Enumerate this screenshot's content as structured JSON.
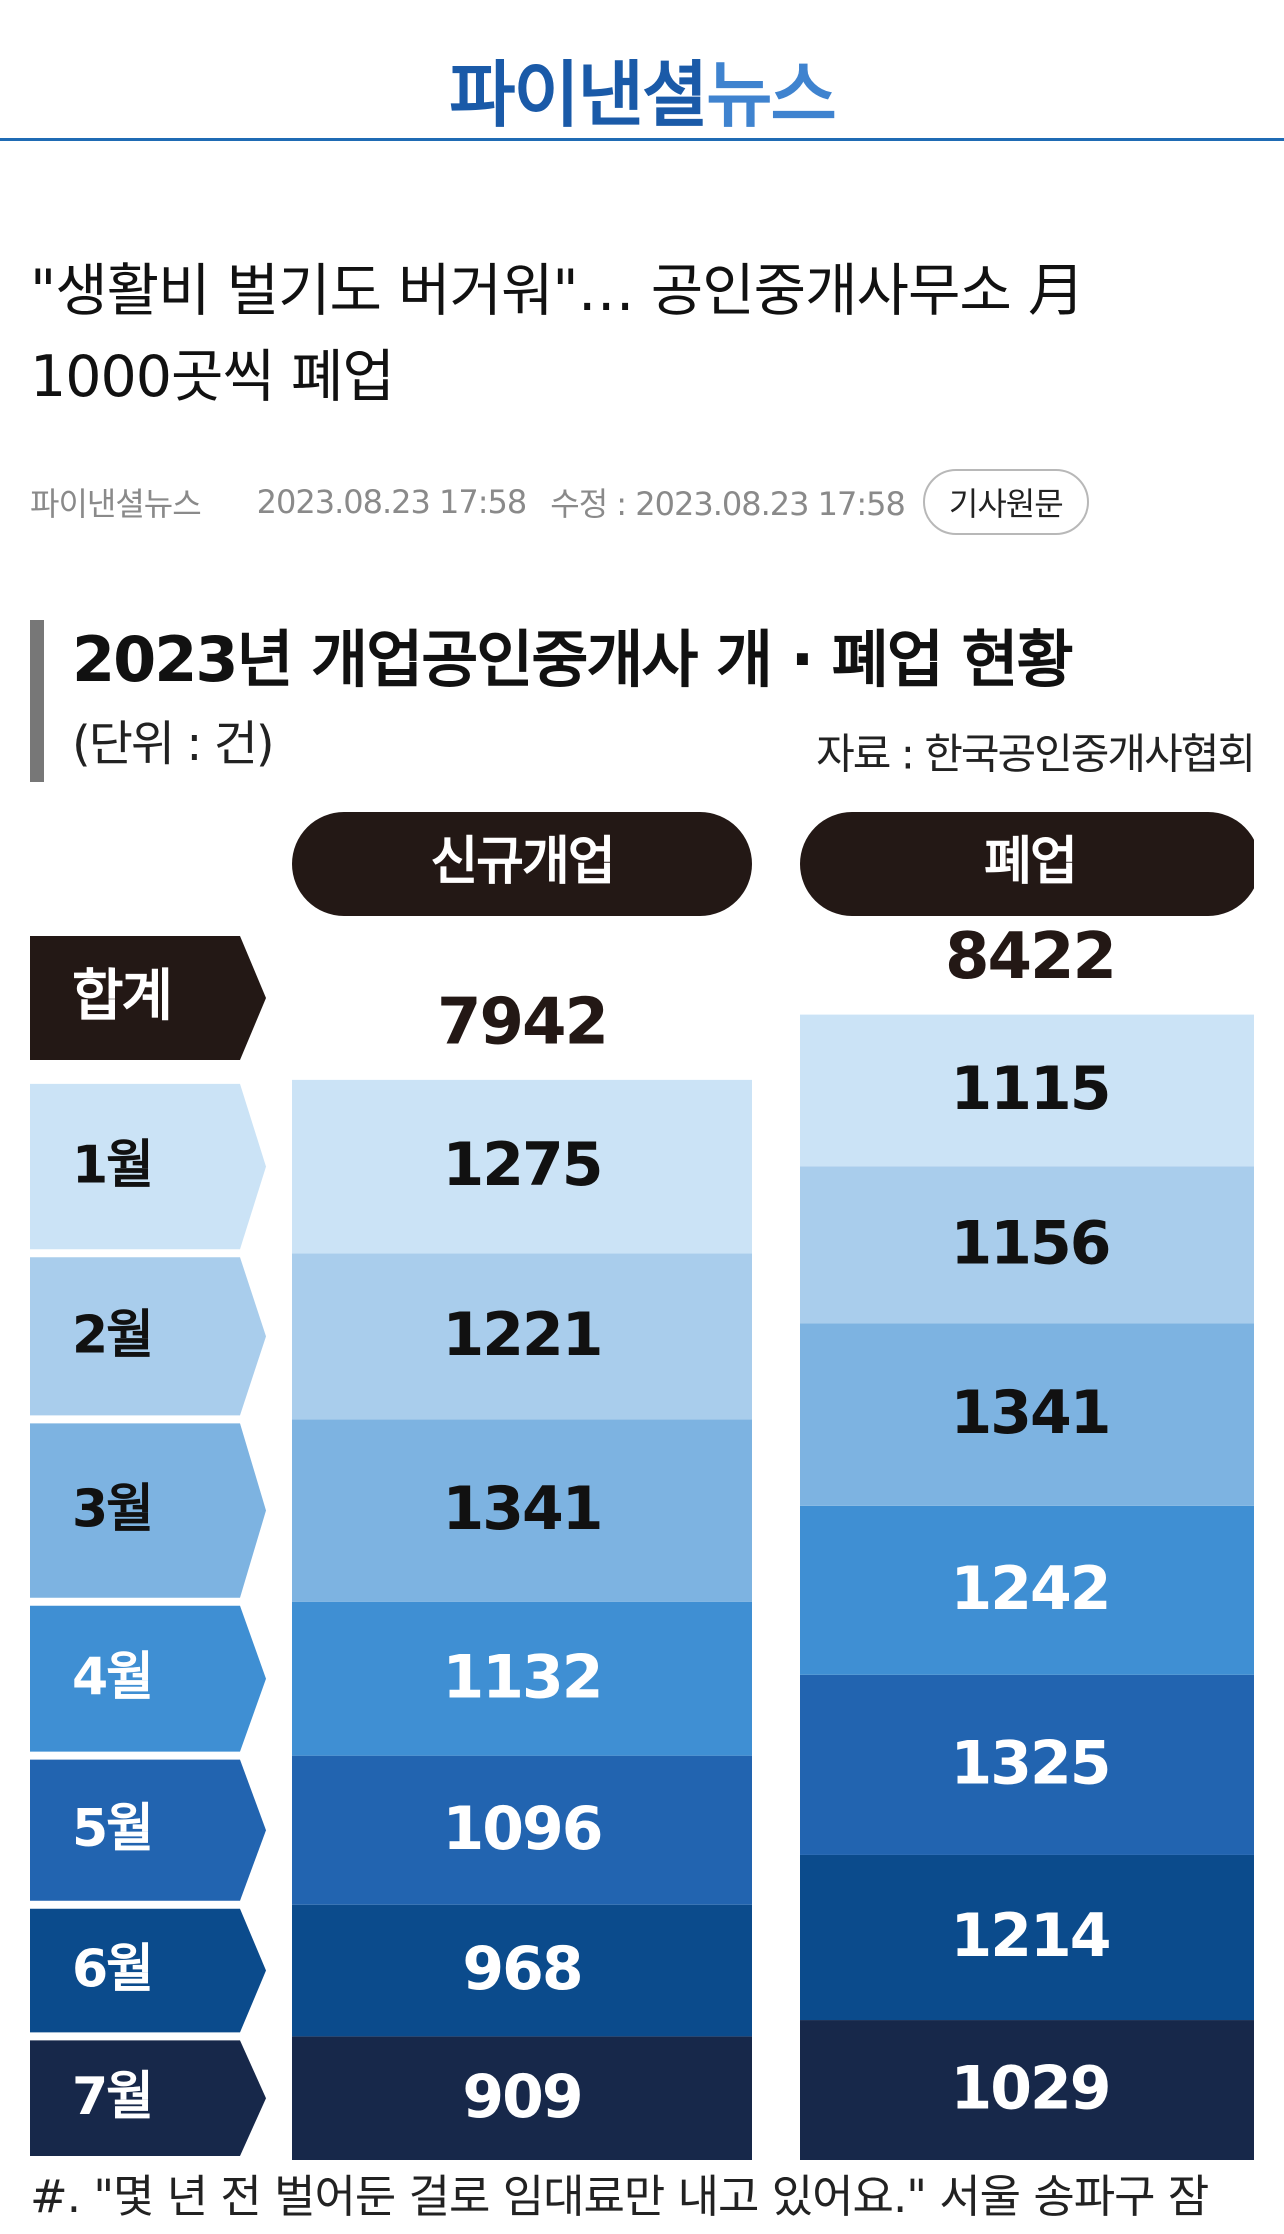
{
  "header": {
    "logo_part1": "파이낸셜",
    "logo_part2": "뉴스"
  },
  "article": {
    "headline_line1": "\"생활비 벌기도 버거워\"… 공인중개사무소 月",
    "headline_line2": "1000곳씩 폐업",
    "source": "파이낸셜뉴스",
    "published": "2023.08.23 17:58",
    "modified": "수정 : 2023.08.23 17:58",
    "original_button": "기사원문",
    "caption": "#. \"몇 년 전 벌어둔 걸로 임대료만 내고 있어요.\" 서울 송파구 잠"
  },
  "chart_data": {
    "type": "bar",
    "title": "2023년 개업공인중개사 개 · 폐업 현황",
    "unit": "(단위 : 건)",
    "source": "자료 : 한국공인중개사협회",
    "total_label": "합계",
    "categories": [
      "1월",
      "2월",
      "3월",
      "4월",
      "5월",
      "6월",
      "7월"
    ],
    "series": [
      {
        "name": "신규개업",
        "total": "7942",
        "values": [
          1275,
          1221,
          1341,
          1132,
          1096,
          968,
          909
        ]
      },
      {
        "name": "폐업",
        "total": "8422",
        "values": [
          1115,
          1156,
          1341,
          1242,
          1325,
          1214,
          1029
        ]
      }
    ],
    "colors": {
      "month_fills": [
        "#cbe3f6",
        "#a9cdec",
        "#7db3e1",
        "#3f8fd3",
        "#2264b0",
        "#0b4b8c",
        "#17284a"
      ],
      "month_text": [
        "#111111",
        "#111111",
        "#111111",
        "#ffffff",
        "#ffffff",
        "#ffffff",
        "#ffffff"
      ],
      "dark": "#231815",
      "title_bar": "#777777"
    }
  }
}
